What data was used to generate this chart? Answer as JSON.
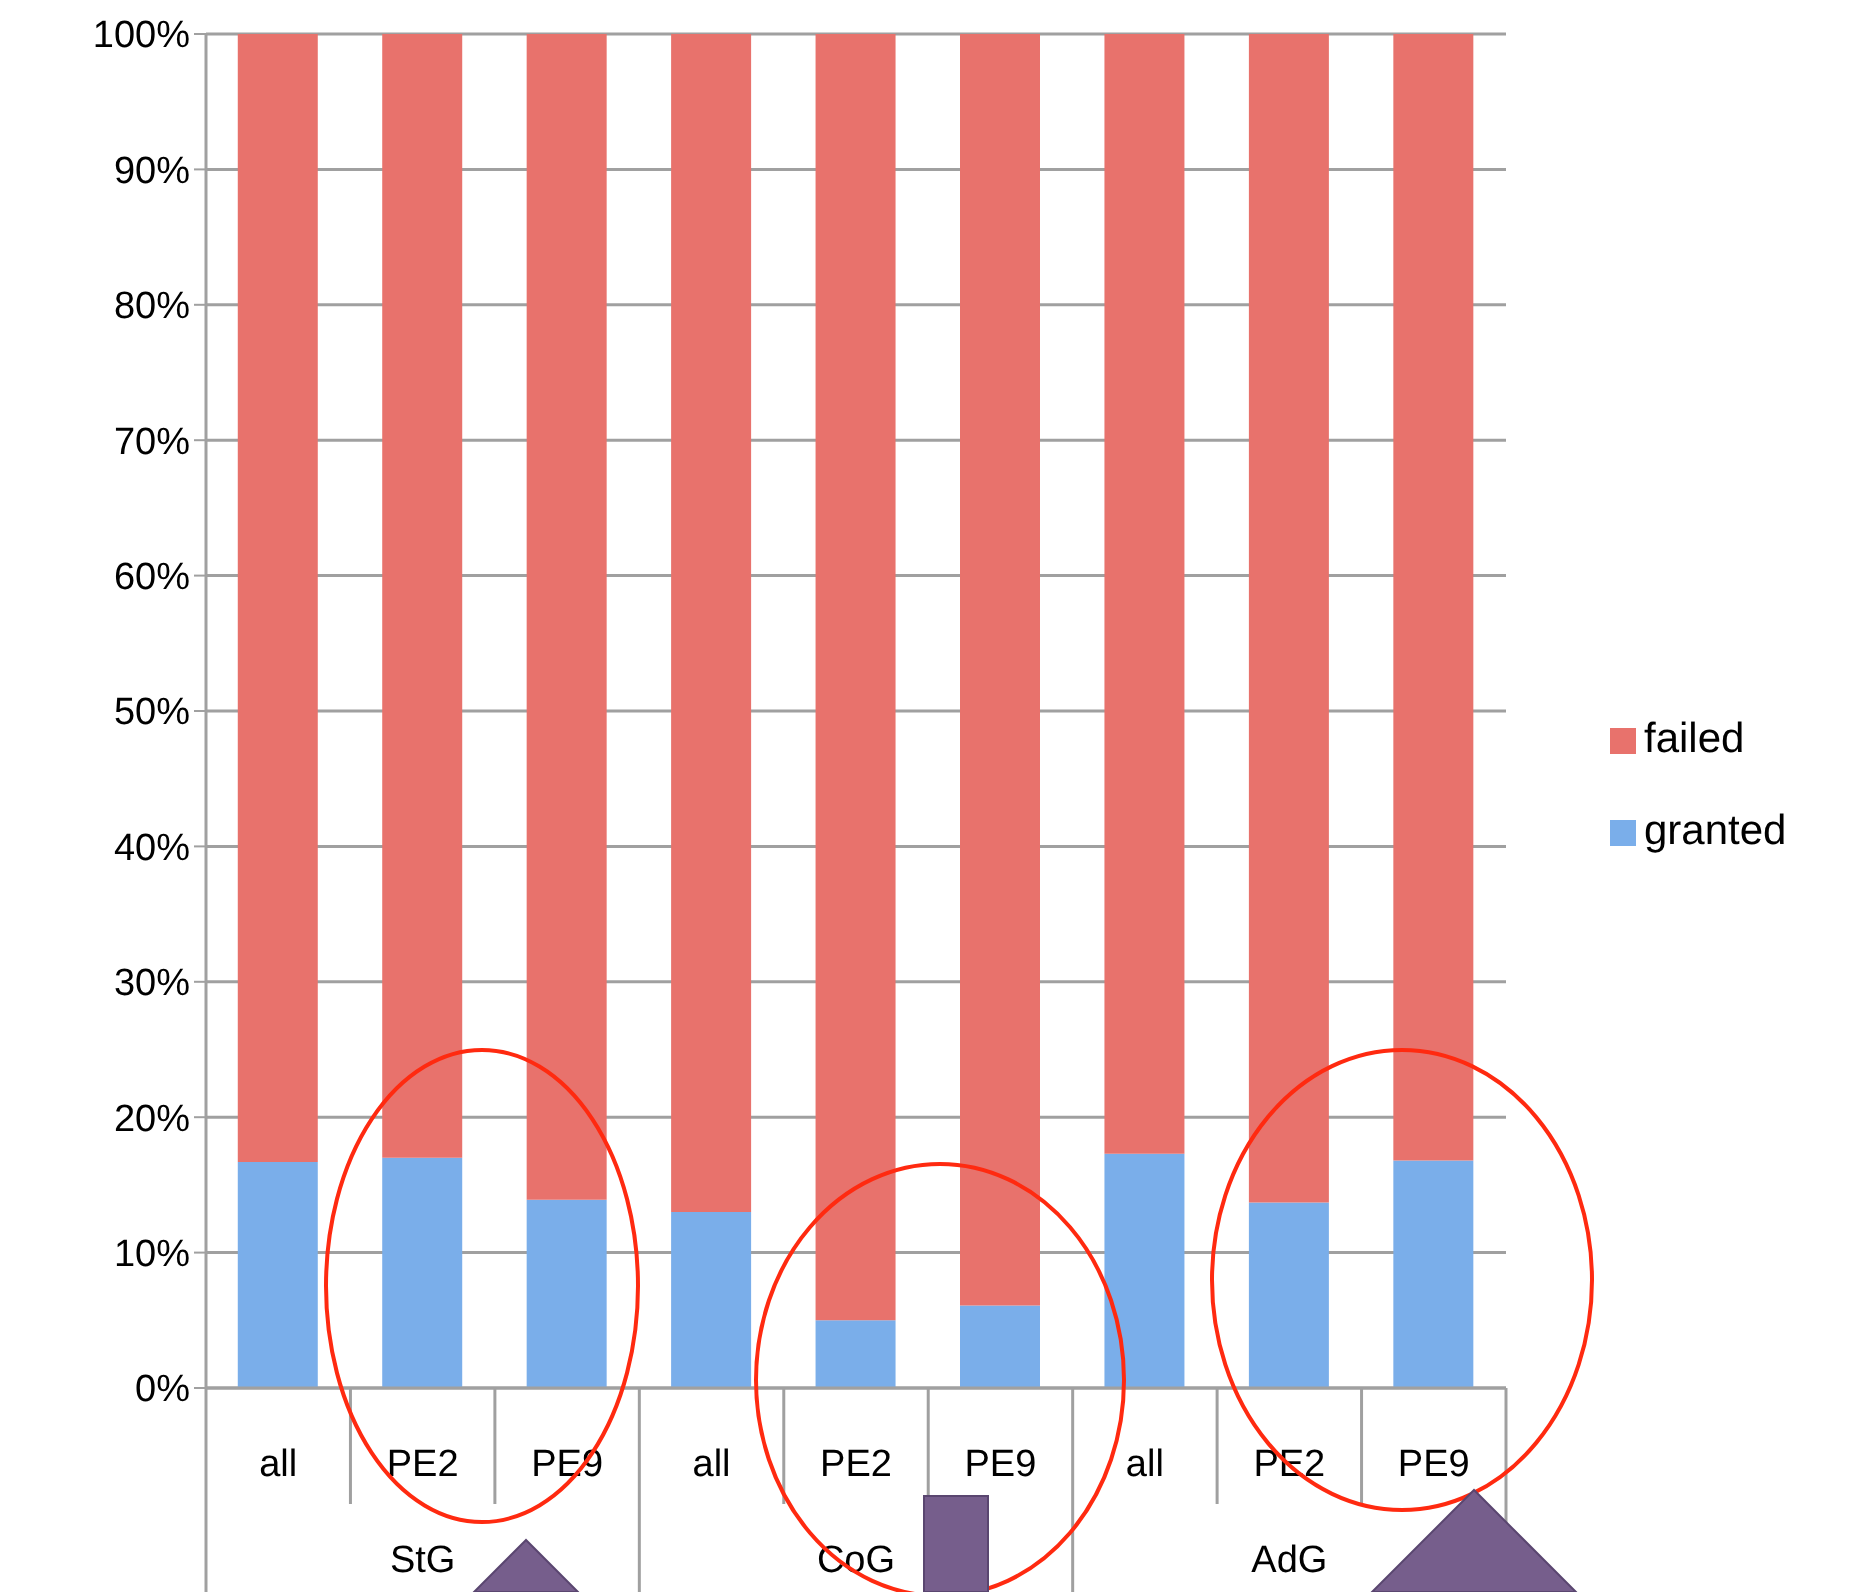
{
  "chart_data": {
    "type": "bar",
    "stacked": true,
    "categories": [
      "all",
      "PE2",
      "PE9",
      "all",
      "PE2",
      "PE9",
      "all",
      "PE2",
      "PE9"
    ],
    "series": [
      {
        "name": "granted",
        "color": "#7aaeea",
        "values": [
          16.7,
          17.0,
          13.9,
          13.0,
          5.0,
          6.1,
          17.3,
          13.7,
          16.8
        ]
      },
      {
        "name": "failed",
        "color": "#e8726c",
        "values": [
          83.3,
          83.0,
          86.1,
          87.0,
          95.0,
          93.9,
          82.7,
          86.3,
          83.2
        ]
      }
    ],
    "ylim": [
      0,
      100
    ],
    "yticks": [
      {
        "value": 0,
        "label": "0%"
      },
      {
        "value": 10,
        "label": "10%"
      },
      {
        "value": 20,
        "label": "20%"
      },
      {
        "value": 30,
        "label": "30%"
      },
      {
        "value": 40,
        "label": "40%"
      },
      {
        "value": 50,
        "label": "50%"
      },
      {
        "value": 60,
        "label": "60%"
      },
      {
        "value": 70,
        "label": "70%"
      },
      {
        "value": 80,
        "label": "80%"
      },
      {
        "value": 90,
        "label": "90%"
      },
      {
        "value": 100,
        "label": "100%"
      }
    ],
    "annotations": [
      "StG",
      "CoG",
      "AdG"
    ],
    "grid": "y",
    "legend": "right"
  }
}
